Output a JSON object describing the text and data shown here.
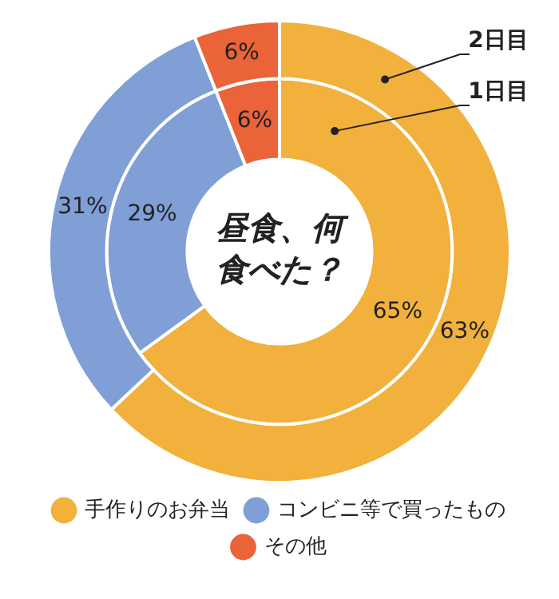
{
  "chart_data": {
    "type": "donut",
    "title": "昼食、何食べた？",
    "categories": [
      "手作りのお弁当",
      "コンビニ等で買ったもの",
      "その他"
    ],
    "colors": [
      "#f2b03c",
      "#809fd6",
      "#ea6339"
    ],
    "series": [
      {
        "name": "2日目",
        "values": [
          63,
          31,
          6
        ],
        "value_labels": [
          "63%",
          "31%",
          "6%"
        ]
      },
      {
        "name": "1日目",
        "values": [
          65,
          29,
          6
        ],
        "value_labels": [
          "65%",
          "29%",
          "6%"
        ]
      }
    ],
    "legend": "bottom"
  }
}
